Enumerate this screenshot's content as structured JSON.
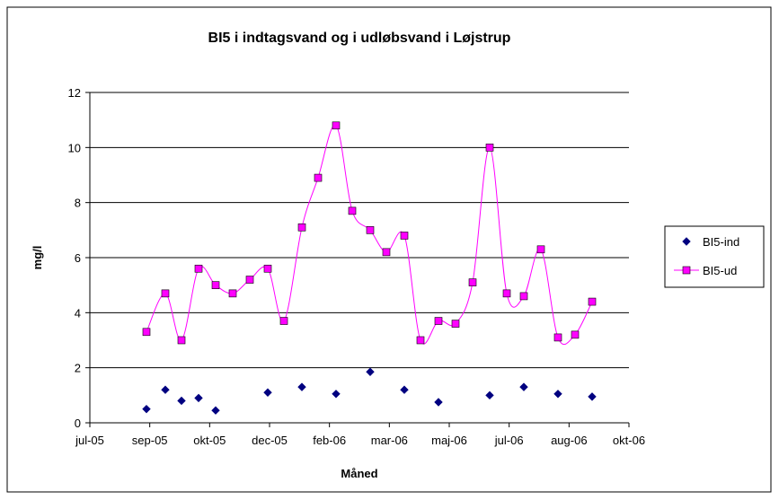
{
  "chart_data": {
    "type": "line",
    "title": "BI5  i indtagsvand og i udløbsvand i Løjstrup",
    "x_label": "Måned",
    "y_label": "mg/l",
    "xlim": [
      0,
      9
    ],
    "xticks": [
      {
        "value": 0,
        "label": "jul-05"
      },
      {
        "value": 1,
        "label": "sep-05"
      },
      {
        "value": 2,
        "label": "okt-05"
      },
      {
        "value": 3,
        "label": "dec-05"
      },
      {
        "value": 4,
        "label": "feb-06"
      },
      {
        "value": 5,
        "label": "mar-06"
      },
      {
        "value": 6,
        "label": "maj-06"
      },
      {
        "value": 7,
        "label": "jul-06"
      },
      {
        "value": 8,
        "label": "aug-06"
      },
      {
        "value": 9,
        "label": "okt-06"
      }
    ],
    "ylim": [
      0,
      12
    ],
    "yticks": [
      0,
      2,
      4,
      6,
      8,
      10,
      12
    ],
    "grid": true,
    "legend": "right",
    "series": [
      {
        "name": "BI5-ind",
        "color": "#000080",
        "marker": "diamond",
        "line": false,
        "x": [
          0.945,
          1.26,
          1.53,
          1.815,
          2.1,
          2.97,
          3.54,
          4.11,
          4.68,
          5.25,
          5.82,
          6.675,
          7.245,
          7.815,
          8.385
        ],
        "values": [
          0.5,
          1.2,
          0.8,
          0.9,
          0.45,
          1.1,
          1.3,
          1.05,
          1.85,
          1.2,
          0.75,
          1.0,
          1.3,
          1.05,
          0.95
        ]
      },
      {
        "name": "BI5-ud",
        "color": "#ff00ff",
        "marker": "square",
        "line": true,
        "x": [
          0.945,
          1.26,
          1.53,
          1.815,
          2.1,
          2.385,
          2.67,
          2.97,
          3.24,
          3.54,
          3.81,
          4.11,
          4.38,
          4.68,
          4.95,
          5.25,
          5.52,
          5.82,
          6.105,
          6.39,
          6.675,
          6.96,
          7.245,
          7.53,
          7.815,
          8.1,
          8.385
        ],
        "values": [
          3.3,
          4.7,
          3.0,
          5.6,
          5.0,
          4.7,
          5.2,
          5.6,
          3.7,
          7.1,
          8.9,
          10.8,
          7.7,
          7.0,
          6.2,
          6.8,
          3.0,
          3.7,
          3.6,
          5.1,
          10.0,
          4.7,
          4.6,
          6.3,
          3.1,
          3.2,
          4.4
        ]
      }
    ]
  }
}
